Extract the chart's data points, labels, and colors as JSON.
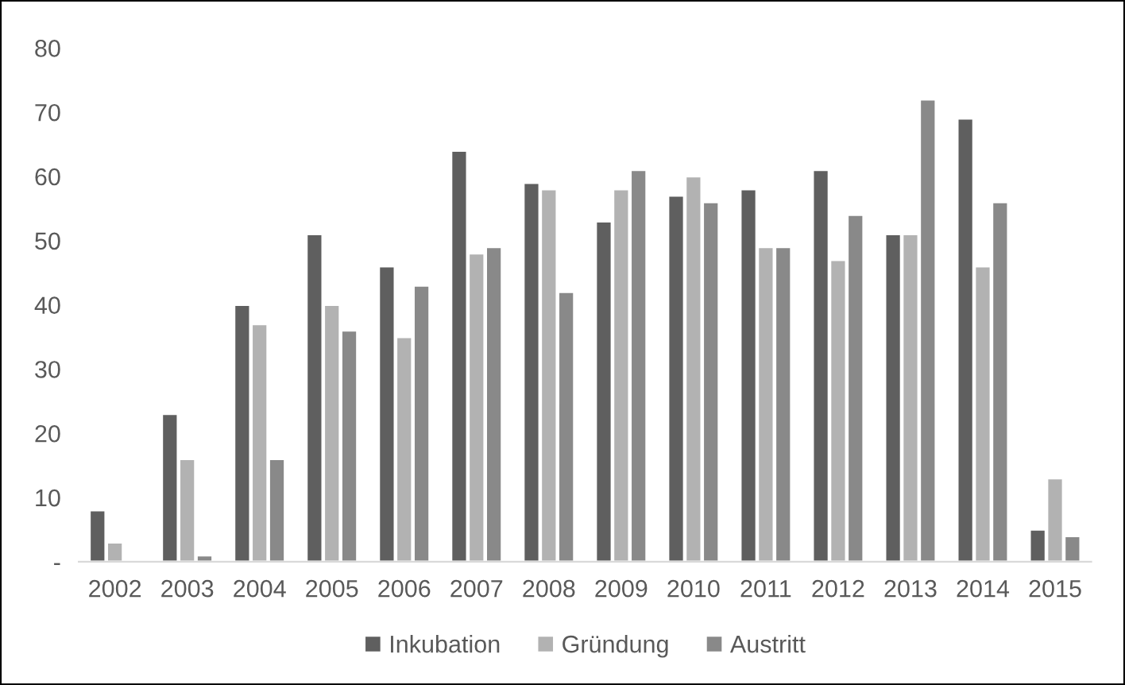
{
  "chart_data": {
    "type": "bar",
    "categories": [
      "2002",
      "2003",
      "2004",
      "2005",
      "2006",
      "2007",
      "2008",
      "2009",
      "2010",
      "2011",
      "2012",
      "2013",
      "2014",
      "2015"
    ],
    "series": [
      {
        "name": "Inkubation",
        "color": "#5f5f5f",
        "values": [
          8,
          23,
          40,
          51,
          46,
          64,
          59,
          53,
          57,
          58,
          61,
          51,
          69,
          5
        ]
      },
      {
        "name": "Gründung",
        "color": "#b2b2b2",
        "values": [
          3,
          16,
          37,
          40,
          35,
          48,
          58,
          58,
          60,
          49,
          47,
          51,
          46,
          13
        ]
      },
      {
        "name": "Austritt",
        "color": "#898989",
        "values": [
          null,
          1,
          16,
          36,
          43,
          49,
          42,
          61,
          56,
          49,
          54,
          72,
          56,
          4
        ]
      }
    ],
    "ylim": [
      0,
      80
    ],
    "yticks": [
      {
        "value": 0,
        "label": "-"
      },
      10,
      20,
      30,
      40,
      50,
      60,
      70,
      80
    ],
    "grid": false,
    "legend": "bottom"
  }
}
